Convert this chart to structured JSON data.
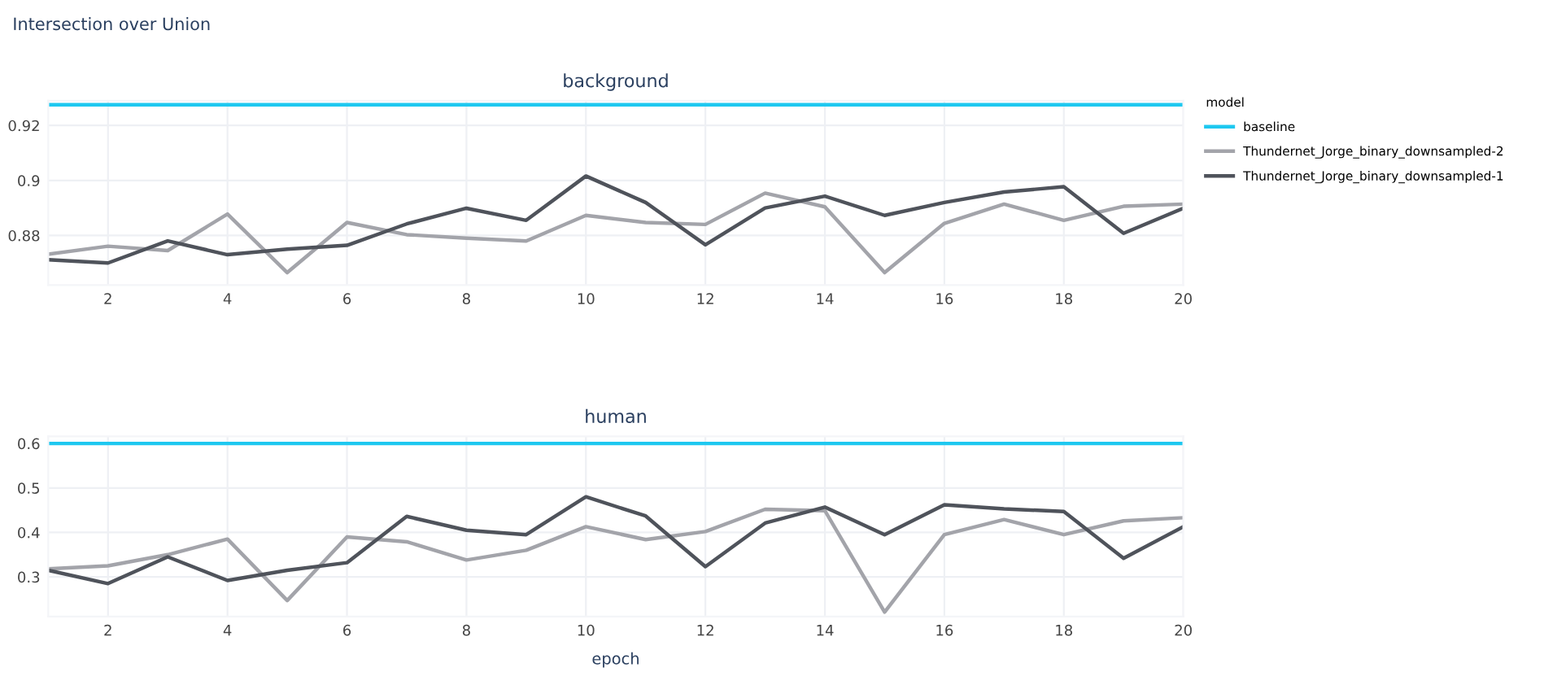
{
  "chart_data": [
    {
      "type": "line",
      "title": "background",
      "annotations": [
        "Intersection over Union"
      ],
      "legend_title": "model",
      "legend": "top right",
      "grid": true,
      "x": [
        1,
        2,
        3,
        4,
        5,
        6,
        7,
        8,
        9,
        10,
        11,
        12,
        13,
        14,
        15,
        16,
        17,
        18,
        19,
        20
      ],
      "xlim": [
        1,
        20
      ],
      "xticks": [
        2,
        4,
        6,
        8,
        10,
        12,
        14,
        16,
        18,
        20
      ],
      "ylim": [
        0.862,
        0.929
      ],
      "yticks": [
        0.88,
        0.9,
        0.92
      ],
      "series": [
        {
          "name": "baseline",
          "color": "#1ec8f0",
          "values": [
            0.9275,
            0.9275,
            0.9275,
            0.9275,
            0.9275,
            0.9275,
            0.9275,
            0.9275,
            0.9275,
            0.9275,
            0.9275,
            0.9275,
            0.9275,
            0.9275,
            0.9275,
            0.9275,
            0.9275,
            0.9275,
            0.9275,
            0.9275
          ]
        },
        {
          "name": "Thundernet_Jorge_binary_downsampled-2",
          "color": "#a3a4aa",
          "values": [
            0.8732,
            0.8761,
            0.8745,
            0.8878,
            0.8665,
            0.8847,
            0.8803,
            0.879,
            0.878,
            0.8873,
            0.8847,
            0.884,
            0.8954,
            0.8904,
            0.8665,
            0.8844,
            0.8914,
            0.8855,
            0.8906,
            0.8914
          ]
        },
        {
          "name": "Thundernet_Jorge_binary_downsampled-1",
          "color": "#4f535b",
          "values": [
            0.8712,
            0.87,
            0.878,
            0.873,
            0.875,
            0.8764,
            0.8842,
            0.8899,
            0.8855,
            0.9016,
            0.892,
            0.8766,
            0.89,
            0.8943,
            0.8873,
            0.892,
            0.8958,
            0.8977,
            0.8808,
            0.8899
          ]
        }
      ]
    },
    {
      "type": "line",
      "title": "human",
      "xlabel": "epoch",
      "grid": true,
      "x": [
        1,
        2,
        3,
        4,
        5,
        6,
        7,
        8,
        9,
        10,
        11,
        12,
        13,
        14,
        15,
        16,
        17,
        18,
        19,
        20
      ],
      "xlim": [
        1,
        20
      ],
      "xticks": [
        2,
        4,
        6,
        8,
        10,
        12,
        14,
        16,
        18,
        20
      ],
      "ylim": [
        0.211,
        0.616
      ],
      "yticks": [
        0.3,
        0.4,
        0.5,
        0.6
      ],
      "series": [
        {
          "color": "#1ec8f0",
          "values": [
            0.6,
            0.6,
            0.6,
            0.6,
            0.6,
            0.6,
            0.6,
            0.6,
            0.6,
            0.6,
            0.6,
            0.6,
            0.6,
            0.6,
            0.6,
            0.6,
            0.6,
            0.6,
            0.6,
            0.6
          ]
        },
        {
          "color": "#a3a4aa",
          "values": [
            0.318,
            0.325,
            0.35,
            0.385,
            0.247,
            0.39,
            0.379,
            0.338,
            0.36,
            0.413,
            0.384,
            0.402,
            0.452,
            0.449,
            0.221,
            0.395,
            0.429,
            0.395,
            0.426,
            0.433
          ]
        },
        {
          "color": "#4f535b",
          "values": [
            0.315,
            0.285,
            0.345,
            0.292,
            0.315,
            0.332,
            0.436,
            0.405,
            0.395,
            0.48,
            0.437,
            0.323,
            0.421,
            0.457,
            0.395,
            0.462,
            0.453,
            0.447,
            0.342,
            0.413
          ]
        }
      ]
    }
  ]
}
